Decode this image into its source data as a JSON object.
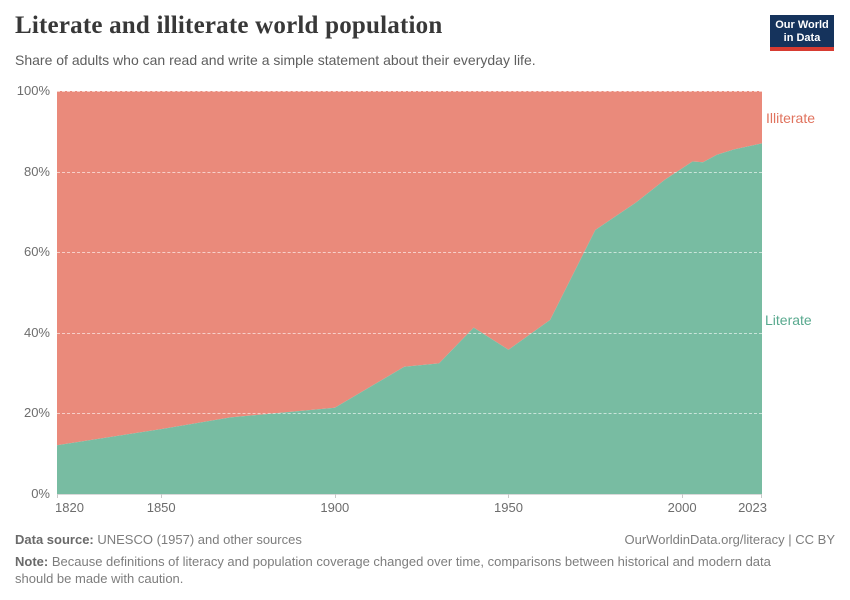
{
  "header": {
    "title": "Literate and illiterate world population",
    "subtitle": "Share of adults who can read and write a simple statement about their everyday life.",
    "logo": {
      "line1": "Our World",
      "line2": "in Data"
    }
  },
  "chart": {
    "y_ticks": [
      "100%",
      "80%",
      "60%",
      "40%",
      "20%",
      "0%"
    ],
    "x_ticks": [
      "1820",
      "1850",
      "1900",
      "1950",
      "2000",
      "2023"
    ],
    "series_labels": {
      "illiterate": "Illiterate",
      "literate": "Literate"
    }
  },
  "chart_data": {
    "type": "area",
    "stacking": "percent",
    "title": "Literate and illiterate world population",
    "subtitle": "Share of adults who can read and write a simple statement about their everyday life.",
    "xlabel": "",
    "ylabel": "",
    "xlim": [
      1820,
      2023
    ],
    "ylim": [
      0,
      100
    ],
    "xticks": [
      1820,
      1850,
      1900,
      1950,
      2000,
      2023
    ],
    "yticks": [
      0,
      20,
      40,
      60,
      80,
      100
    ],
    "grid": "horizontal-dashed",
    "legend": "inline-right-labels",
    "x": [
      1820,
      1850,
      1870,
      1900,
      1920,
      1930,
      1940,
      1950,
      1962,
      1975,
      1987,
      1995,
      2000,
      2003,
      2006,
      2010,
      2015,
      2023
    ],
    "series": [
      {
        "name": "Literate",
        "color": "#78BCA2",
        "values": [
          12.1,
          16.1,
          19.0,
          21.4,
          31.6,
          32.4,
          41.3,
          35.8,
          43.2,
          65.5,
          72.5,
          78.0,
          80.8,
          82.5,
          82.3,
          84.2,
          85.5,
          87.0
        ]
      },
      {
        "name": "Illiterate",
        "color": "#EA8A7B",
        "values": [
          87.9,
          83.9,
          81.0,
          78.6,
          68.4,
          67.6,
          58.7,
          64.2,
          56.8,
          34.5,
          27.5,
          22.0,
          19.2,
          17.5,
          17.7,
          15.8,
          14.5,
          13.0
        ]
      }
    ]
  },
  "footer": {
    "datasource_label": "Data source:",
    "datasource_text": " UNESCO (1957) and other sources",
    "credit": "OurWorldinData.org/literacy | CC BY",
    "note_label": "Note:",
    "note_text": " Because definitions of literacy and population coverage changed over time, comparisons between historical and modern data should be made with caution."
  }
}
